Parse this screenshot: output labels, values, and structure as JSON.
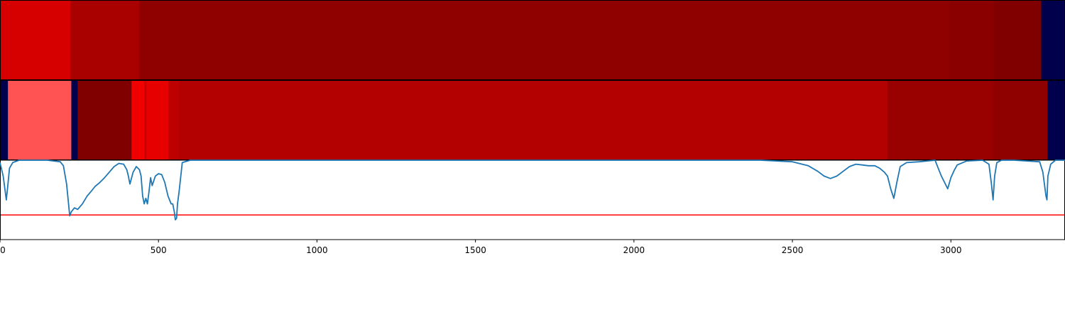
{
  "chart_data": {
    "type": "heatmap",
    "x_range": [
      0,
      3360
    ],
    "x_ticks": [
      0,
      500,
      1000,
      1500,
      2000,
      2500,
      3000
    ],
    "x_tick_labels": [
      "0",
      "500",
      "1000",
      "1500",
      "2000",
      "2500",
      "3000"
    ],
    "colormap": "seismic",
    "value_range": [
      0,
      1
    ],
    "rows": [
      {
        "segments": [
          {
            "start": 0,
            "end": 222,
            "value": 0.83
          },
          {
            "start": 222,
            "end": 440,
            "value": 0.92
          },
          {
            "start": 440,
            "end": 2995,
            "value": 0.97
          },
          {
            "start": 2995,
            "end": 3135,
            "value": 0.98
          },
          {
            "start": 3135,
            "end": 3285,
            "value": 1.0
          },
          {
            "start": 3285,
            "end": 3360,
            "value": 0.0
          }
        ]
      },
      {
        "segments": [
          {
            "start": 0,
            "end": 25,
            "value": 0.0
          },
          {
            "start": 25,
            "end": 225,
            "value": 0.67
          },
          {
            "start": 225,
            "end": 245,
            "value": 0.0
          },
          {
            "start": 245,
            "end": 415,
            "value": 1.0
          },
          {
            "start": 415,
            "end": 455,
            "value": 0.78
          },
          {
            "start": 455,
            "end": 462,
            "value": 0.86
          },
          {
            "start": 462,
            "end": 532,
            "value": 0.8
          },
          {
            "start": 532,
            "end": 565,
            "value": 0.88
          },
          {
            "start": 565,
            "end": 2800,
            "value": 0.9
          },
          {
            "start": 2800,
            "end": 3135,
            "value": 0.95
          },
          {
            "start": 3135,
            "end": 3305,
            "value": 0.97
          },
          {
            "start": 3305,
            "end": 3360,
            "value": 0.0
          }
        ]
      }
    ],
    "line_series": {
      "color": "#1f77b4",
      "y_range": [
        0,
        1
      ],
      "x": [
        0,
        10,
        20,
        25,
        30,
        40,
        60,
        100,
        150,
        190,
        200,
        210,
        215,
        220,
        225,
        235,
        245,
        260,
        275,
        290,
        300,
        315,
        330,
        345,
        360,
        375,
        390,
        400,
        405,
        410,
        420,
        430,
        440,
        445,
        450,
        455,
        460,
        465,
        470,
        475,
        480,
        490,
        500,
        510,
        520,
        530,
        535,
        540,
        545,
        550,
        553,
        557,
        560,
        565,
        575,
        600,
        700,
        900,
        1200,
        1500,
        2000,
        2400,
        2500,
        2550,
        2580,
        2600,
        2620,
        2640,
        2660,
        2680,
        2700,
        2720,
        2740,
        2760,
        2775,
        2790,
        2800,
        2810,
        2820,
        2830,
        2840,
        2860,
        2900,
        2950,
        2960,
        2970,
        2980,
        2990,
        3000,
        3010,
        3020,
        3050,
        3100,
        3120,
        3128,
        3133,
        3138,
        3145,
        3160,
        3200,
        3280,
        3290,
        3300,
        3303,
        3306,
        3315,
        3330,
        3360
      ],
      "y": [
        0.97,
        0.8,
        0.5,
        0.7,
        0.9,
        0.97,
        1.0,
        1.0,
        1.0,
        0.98,
        0.93,
        0.7,
        0.5,
        0.3,
        0.35,
        0.4,
        0.38,
        0.45,
        0.55,
        0.62,
        0.67,
        0.72,
        0.78,
        0.85,
        0.92,
        0.96,
        0.95,
        0.88,
        0.8,
        0.7,
        0.85,
        0.92,
        0.88,
        0.8,
        0.55,
        0.45,
        0.52,
        0.45,
        0.6,
        0.78,
        0.68,
        0.8,
        0.83,
        0.82,
        0.72,
        0.55,
        0.5,
        0.45,
        0.45,
        0.35,
        0.25,
        0.27,
        0.45,
        0.6,
        0.97,
        1.0,
        1.0,
        1.0,
        1.0,
        1.0,
        1.0,
        1.0,
        0.98,
        0.93,
        0.86,
        0.8,
        0.77,
        0.8,
        0.86,
        0.92,
        0.95,
        0.94,
        0.93,
        0.93,
        0.9,
        0.85,
        0.8,
        0.64,
        0.52,
        0.73,
        0.92,
        0.97,
        0.98,
        1.0,
        0.9,
        0.8,
        0.72,
        0.64,
        0.78,
        0.87,
        0.94,
        0.99,
        1.0,
        0.95,
        0.7,
        0.5,
        0.8,
        0.97,
        1.0,
        1.0,
        0.98,
        0.85,
        0.55,
        0.5,
        0.8,
        0.95,
        1.0,
        1.0
      ]
    },
    "threshold_line": {
      "y": 0.31,
      "color": "#ff0000"
    },
    "grid": false,
    "legend": "none"
  }
}
